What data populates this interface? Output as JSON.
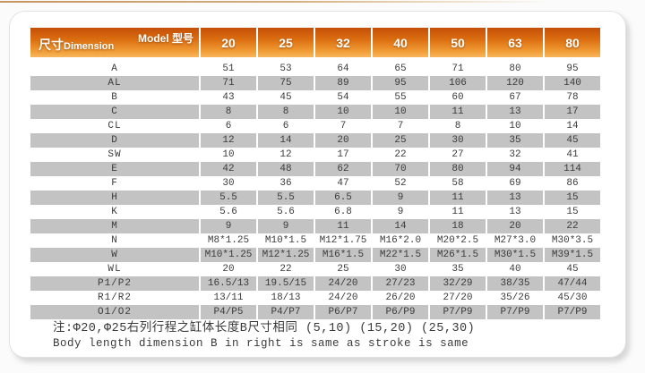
{
  "colors": {
    "header_gradient_top": "#c54f08",
    "header_gradient_bottom": "#f8b65c",
    "row_alt_gray": "#c3c3c3",
    "body_text": "#3b3b3b"
  },
  "table": {
    "corner": {
      "model_label": "Model 型号",
      "dimension_zh": "尺寸",
      "dimension_en": "Dimension"
    },
    "model_columns": [
      "20",
      "25",
      "32",
      "40",
      "50",
      "63",
      "80"
    ],
    "rows": [
      {
        "label": "A",
        "values": [
          "51",
          "53",
          "64",
          "65",
          "71",
          "80",
          "95"
        ]
      },
      {
        "label": "AL",
        "values": [
          "71",
          "75",
          "89",
          "95",
          "106",
          "120",
          "140"
        ]
      },
      {
        "label": "B",
        "values": [
          "43",
          "45",
          "54",
          "55",
          "60",
          "67",
          "78"
        ]
      },
      {
        "label": "C",
        "values": [
          "8",
          "8",
          "10",
          "10",
          "11",
          "13",
          "17"
        ]
      },
      {
        "label": "CL",
        "values": [
          "6",
          "6",
          "7",
          "7",
          "8",
          "10",
          "14"
        ]
      },
      {
        "label": "D",
        "values": [
          "12",
          "14",
          "20",
          "25",
          "30",
          "35",
          "45"
        ]
      },
      {
        "label": "SW",
        "values": [
          "10",
          "12",
          "17",
          "22",
          "27",
          "32",
          "41"
        ]
      },
      {
        "label": "E",
        "values": [
          "42",
          "48",
          "62",
          "70",
          "80",
          "94",
          "114"
        ]
      },
      {
        "label": "F",
        "values": [
          "30",
          "36",
          "47",
          "52",
          "58",
          "69",
          "86"
        ]
      },
      {
        "label": "H",
        "values": [
          "5.5",
          "5.5",
          "6.5",
          "9",
          "11",
          "13",
          "15"
        ]
      },
      {
        "label": "K",
        "values": [
          "5.6",
          "5.6",
          "6.8",
          "9",
          "11",
          "13",
          "15"
        ]
      },
      {
        "label": "M",
        "values": [
          "9",
          "9",
          "11",
          "14",
          "18",
          "20",
          "22"
        ]
      },
      {
        "label": "N",
        "values": [
          "M8*1.25",
          "M10*1.5",
          "M12*1.75",
          "M16*2.0",
          "M20*2.5",
          "M27*3.0",
          "M30*3.5"
        ]
      },
      {
        "label": "W",
        "values": [
          "M10*1.25",
          "M12*1.25",
          "M16*1.5",
          "M22*1.5",
          "M26*1.5",
          "M30*1.5",
          "M39*1.5"
        ]
      },
      {
        "label": "WL",
        "values": [
          "20",
          "22",
          "25",
          "30",
          "35",
          "40",
          "45"
        ]
      },
      {
        "label": "P1/P2",
        "values": [
          "16.5/13",
          "19.5/15",
          "24/20",
          "27/23",
          "32/29",
          "38/35",
          "47/44"
        ]
      },
      {
        "label": "R1/R2",
        "values": [
          "13/11",
          "18/13",
          "24/20",
          "26/20",
          "27/20",
          "35/26",
          "45/30"
        ]
      },
      {
        "label": "O1/O2",
        "values": [
          "P4/P5",
          "P4/P7",
          "P6/P7",
          "P6/P9",
          "P7/P9",
          "P7/P9",
          "P7/P9"
        ]
      }
    ]
  },
  "notes": {
    "line_zh": "注:Φ20,Φ25右列行程之缸体长度B尺寸相同 (5,10) (15,20) (25,30)",
    "line_en": "Body length dimension B in right is same as stroke is same"
  }
}
